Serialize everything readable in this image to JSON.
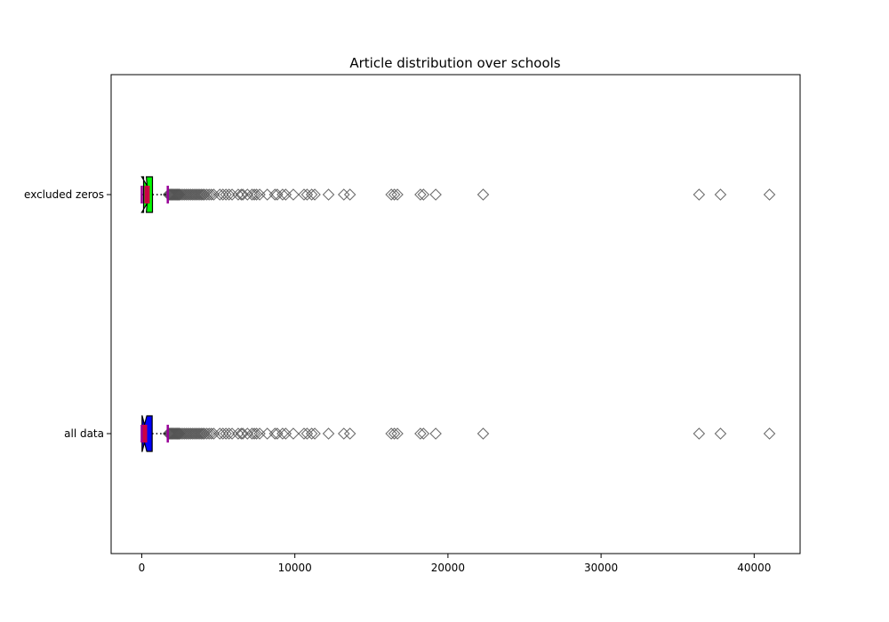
{
  "chart_data": {
    "type": "boxplot",
    "orientation": "horizontal",
    "title": "Article distribution over schools",
    "xlabel": "",
    "ylabel": "",
    "xlim": [
      -2000,
      43000
    ],
    "xticks": [
      0,
      10000,
      20000,
      30000,
      40000
    ],
    "xtick_labels": [
      "0",
      "10000",
      "20000",
      "30000",
      "40000"
    ],
    "grid": false,
    "categories": [
      "all data",
      "excluded zeros"
    ],
    "series": [
      {
        "category": "all data",
        "box_color": "#0000ff",
        "whisker_low": 0,
        "q1": 20,
        "median": 180,
        "q3": 680,
        "whisker_high": 1700,
        "notch_low": 30,
        "notch_high": 330,
        "outliers": [
          1750,
          1800,
          1850,
          1900,
          1950,
          2000,
          2050,
          2100,
          2150,
          2200,
          2250,
          2300,
          2350,
          2400,
          2450,
          2500,
          2600,
          2700,
          2800,
          2900,
          3000,
          3100,
          3200,
          3300,
          3400,
          3500,
          3600,
          3700,
          3800,
          3900,
          4000,
          4100,
          4250,
          4400,
          4550,
          4700,
          5100,
          5300,
          5500,
          5700,
          5900,
          6300,
          6500,
          6600,
          6900,
          7200,
          7350,
          7500,
          7700,
          8200,
          8700,
          8850,
          9200,
          9400,
          9900,
          10600,
          10800,
          11100,
          11300,
          12200,
          13200,
          13600,
          16300,
          16500,
          16700,
          18200,
          18400,
          19200,
          22300,
          36400,
          37800,
          41000
        ]
      },
      {
        "category": "excluded zeros",
        "box_color": "#00ff00",
        "whisker_low": 1,
        "q1": 120,
        "median": 350,
        "q3": 700,
        "whisker_high": 1700,
        "notch_low": 0,
        "notch_high": 300,
        "outliers": [
          1750,
          1800,
          1850,
          1900,
          1950,
          2000,
          2050,
          2100,
          2150,
          2200,
          2250,
          2300,
          2350,
          2400,
          2450,
          2500,
          2600,
          2700,
          2800,
          2900,
          3000,
          3100,
          3200,
          3300,
          3400,
          3500,
          3600,
          3700,
          3800,
          3900,
          4000,
          4100,
          4250,
          4400,
          4550,
          4700,
          5100,
          5300,
          5500,
          5700,
          5900,
          6300,
          6500,
          6600,
          6900,
          7200,
          7350,
          7500,
          7700,
          8200,
          8700,
          8850,
          9200,
          9400,
          9900,
          10600,
          10800,
          11100,
          11300,
          12200,
          13200,
          13600,
          16300,
          16500,
          16700,
          18200,
          18400,
          19200,
          22300,
          36400,
          37800,
          41000
        ]
      }
    ],
    "styles": {
      "median_color": "#cc0044",
      "whisker_cap_color": "#990099",
      "outlier_edge_color": "#555555",
      "outlier_marker": "diamond",
      "whisker_style": "dotted"
    }
  }
}
